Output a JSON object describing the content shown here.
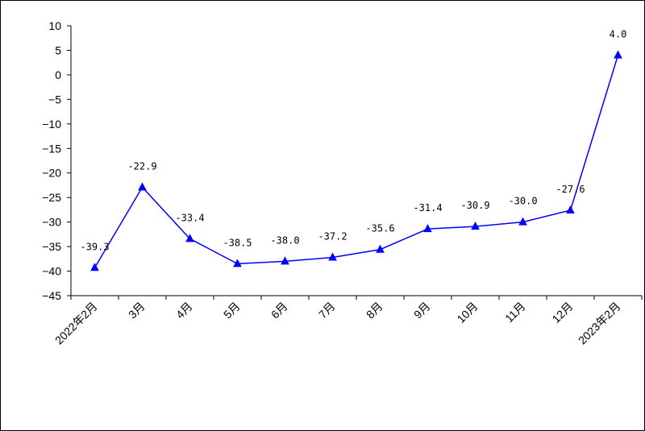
{
  "chart_data": {
    "type": "line",
    "title": "",
    "xlabel": "",
    "ylabel": "",
    "categories": [
      "2022年2月",
      "3月",
      "4月",
      "5月",
      "6月",
      "7月",
      "8月",
      "9月",
      "10月",
      "11月",
      "12月",
      "2023年2月"
    ],
    "series": [
      {
        "values": [
          -39.3,
          -22.9,
          -33.4,
          -38.5,
          -38.0,
          -37.2,
          -35.6,
          -31.4,
          -30.9,
          -30.0,
          -27.6,
          4.0
        ],
        "data_labels": [
          "-39.3",
          "-22.9",
          "-33.4",
          "-38.5",
          "-38.0",
          "-37.2",
          "-35.6",
          "-31.4",
          "-30.9",
          "-30.0",
          "-27.6",
          "4.0"
        ],
        "color": "#0000ff",
        "marker": "triangle"
      }
    ],
    "ylim": [
      -45,
      10
    ],
    "yticks": [
      10,
      5,
      0,
      -5,
      -10,
      -15,
      -20,
      -25,
      -30,
      -35,
      -40,
      -45
    ],
    "ytick_labels": [
      "10",
      "5",
      "0",
      "−5",
      "−10",
      "−15",
      "−20",
      "−25",
      "−30",
      "−35",
      "−40",
      "−45"
    ],
    "grid": false,
    "legend": false
  }
}
